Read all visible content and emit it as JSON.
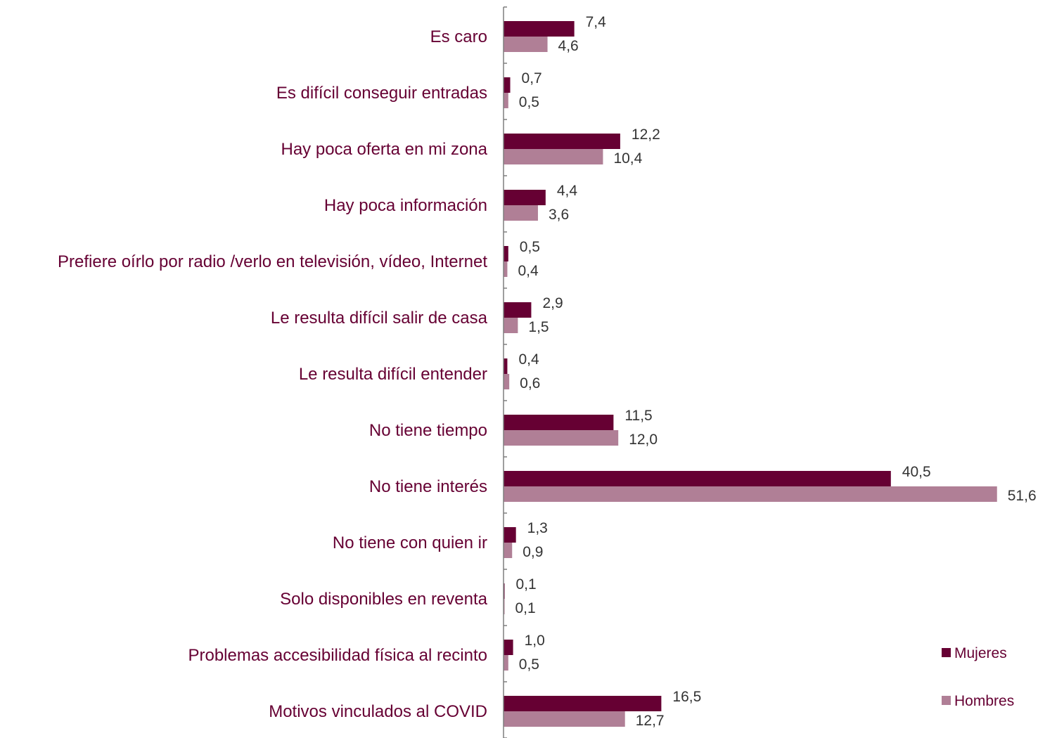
{
  "colors": {
    "mujeres": "#660033",
    "hombres": "#b07f96",
    "label_text": "#660033",
    "value_text": "#333333",
    "axis": "#7f7f7f"
  },
  "chart_data": {
    "type": "bar",
    "orientation": "horizontal",
    "title": "",
    "xlabel": "",
    "ylabel": "",
    "xlim": [
      0,
      52
    ],
    "grid": false,
    "legend_position": "bottom-right",
    "categories": [
      "Es caro",
      "Es difícil conseguir entradas",
      "Hay poca oferta en mi zona",
      "Hay poca información",
      "Prefiere oírlo por radio /verlo en televisión, vídeo, Internet",
      "Le resulta difícil salir de casa",
      "Le resulta difícil entender",
      "No tiene tiempo",
      "No tiene interés",
      "No tiene con quien ir",
      "Solo disponibles en reventa",
      "Problemas accesibilidad física al recinto",
      "Motivos vinculados al COVID"
    ],
    "series": [
      {
        "name": "Mujeres",
        "values": [
          7.4,
          0.7,
          12.2,
          4.4,
          0.5,
          2.9,
          0.4,
          11.5,
          40.5,
          1.3,
          0.1,
          1.0,
          16.5
        ],
        "labels": [
          "7,4",
          "0,7",
          "12,2",
          "4,4",
          "0,5",
          "2,9",
          "0,4",
          "11,5",
          "40,5",
          "1,3",
          "0,1",
          "1,0",
          "16,5"
        ]
      },
      {
        "name": "Hombres",
        "values": [
          4.6,
          0.5,
          10.4,
          3.6,
          0.4,
          1.5,
          0.6,
          12.0,
          51.6,
          0.9,
          0.1,
          0.5,
          12.7
        ],
        "labels": [
          "4,6",
          "0,5",
          "10,4",
          "3,6",
          "0,4",
          "1,5",
          "0,6",
          "12,0",
          "51,6",
          "0,9",
          "0,1",
          "0,5",
          "12,7"
        ]
      }
    ]
  }
}
